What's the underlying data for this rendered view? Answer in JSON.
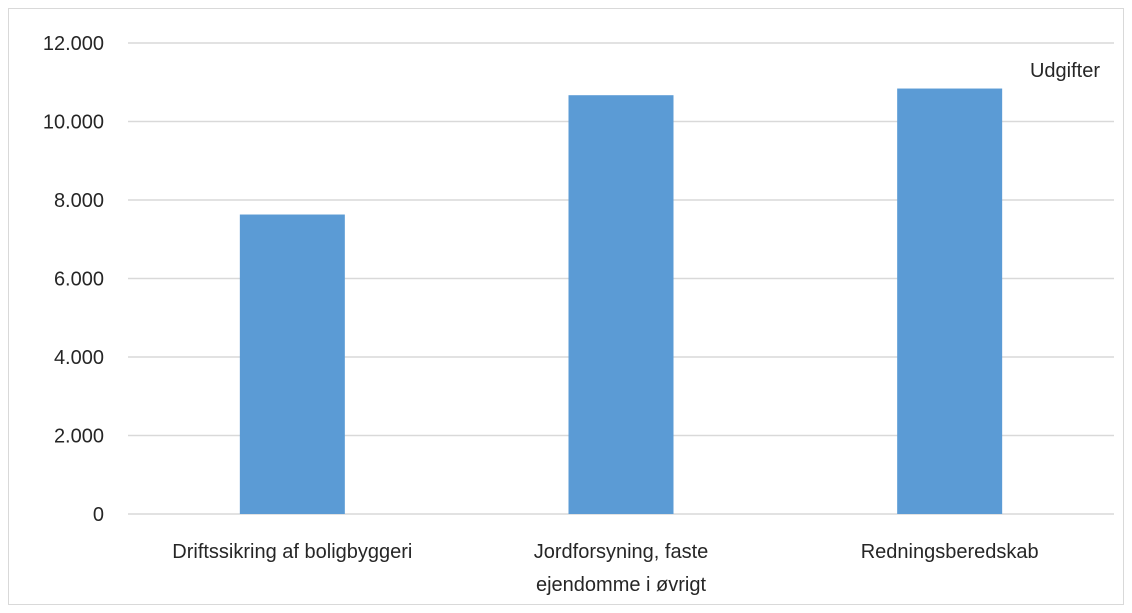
{
  "chart_data": {
    "type": "bar",
    "categories": [
      [
        "Driftssikring af boligbyggeri"
      ],
      [
        "Jordforsyning, faste",
        "ejendomme i øvrigt"
      ],
      [
        "Redningsberedskab"
      ]
    ],
    "series": [
      {
        "name": "Udgifter",
        "values": [
          7630,
          10670,
          10840
        ],
        "color": "#5b9bd5"
      }
    ],
    "ylim": [
      0,
      12000
    ],
    "yticks": [
      0,
      2000,
      4000,
      6000,
      8000,
      10000,
      12000
    ],
    "ytick_labels": [
      "0",
      "2.000",
      "4.000",
      "6.000",
      "8.000",
      "10.000",
      "12.000"
    ],
    "grid": true,
    "legend_position": "top-right",
    "colors": {
      "gridline": "#d9d9d9",
      "text": "#262626"
    }
  }
}
